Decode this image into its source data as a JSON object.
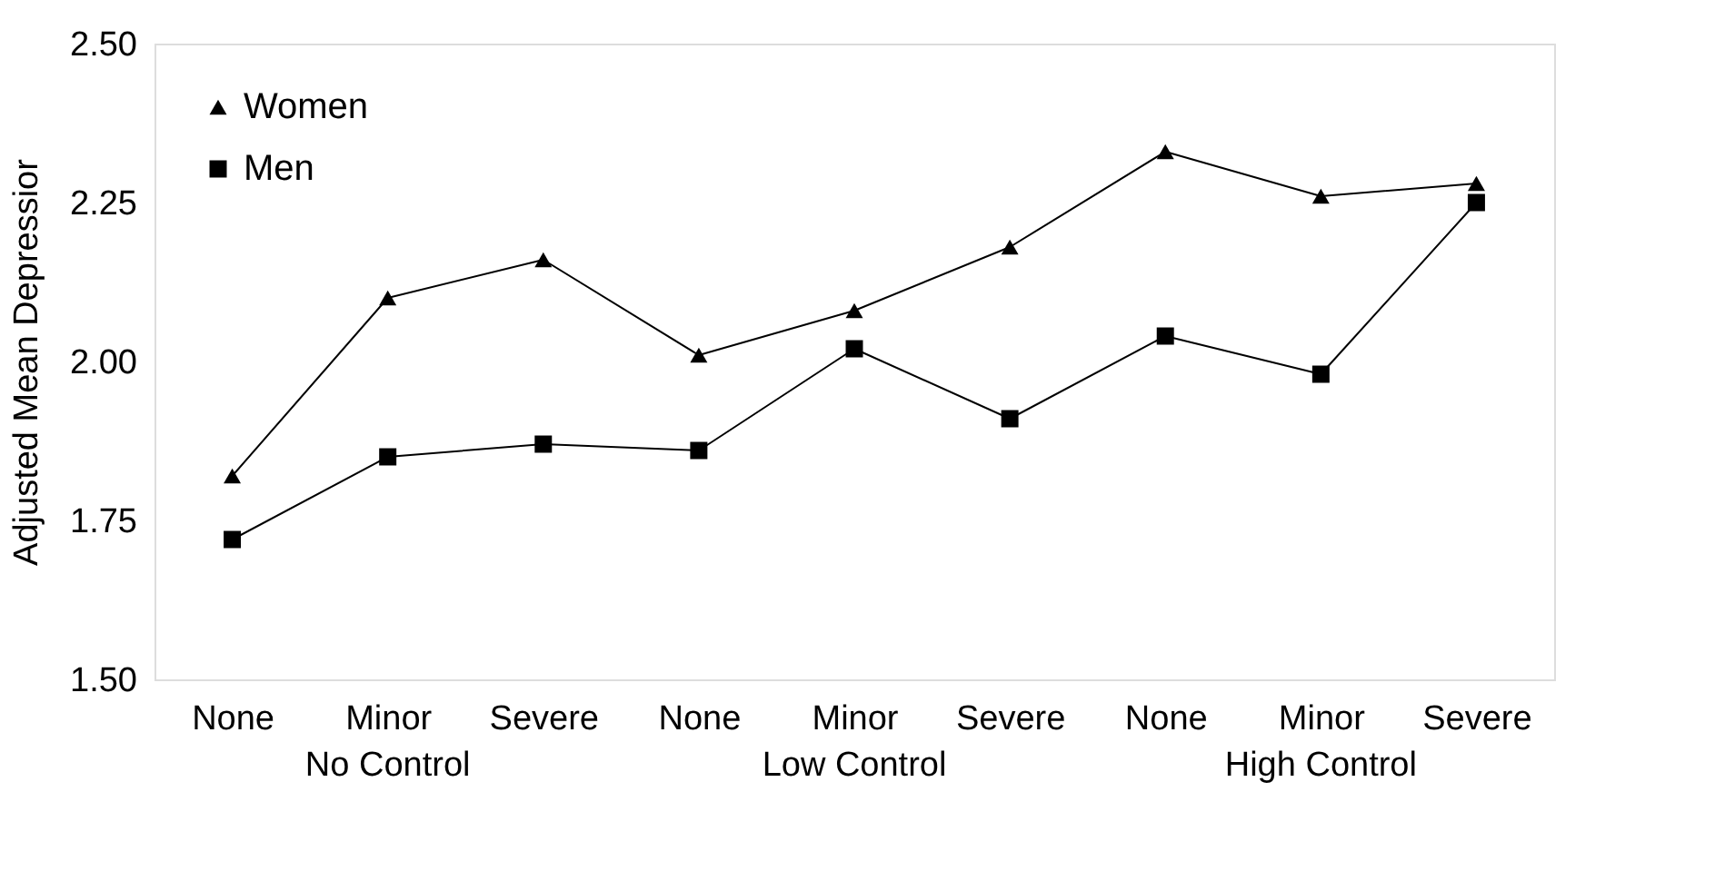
{
  "chart_data": {
    "type": "line",
    "ylabel": "Adjusted Mean Depressior",
    "categories": [
      "None",
      "Minor",
      "Severe",
      "None",
      "Minor",
      "Severe",
      "None",
      "Minor",
      "Severe"
    ],
    "series": [
      {
        "name": "Women",
        "color": "#000000",
        "marker": "triangle",
        "values": [
          1.82,
          2.1,
          2.16,
          2.01,
          2.08,
          2.18,
          2.33,
          2.26,
          2.28
        ]
      },
      {
        "name": "Men",
        "color": "#000000",
        "marker": "square",
        "values": [
          1.72,
          1.85,
          1.87,
          1.86,
          2.02,
          1.91,
          2.04,
          1.98,
          2.25
        ]
      }
    ],
    "ylim": [
      1.5,
      2.5
    ],
    "yticks": [
      {
        "value": 1.5,
        "label": "1.50"
      },
      {
        "value": 1.75,
        "label": "1.75"
      },
      {
        "value": 2.0,
        "label": "2.00"
      },
      {
        "value": 2.25,
        "label": "2.25"
      },
      {
        "value": 2.5,
        "label": "2.50"
      }
    ],
    "annotations": [
      "No Control",
      "Low Control",
      "High Control"
    ],
    "grid": false,
    "legend": "top left",
    "line_style": "solid"
  }
}
